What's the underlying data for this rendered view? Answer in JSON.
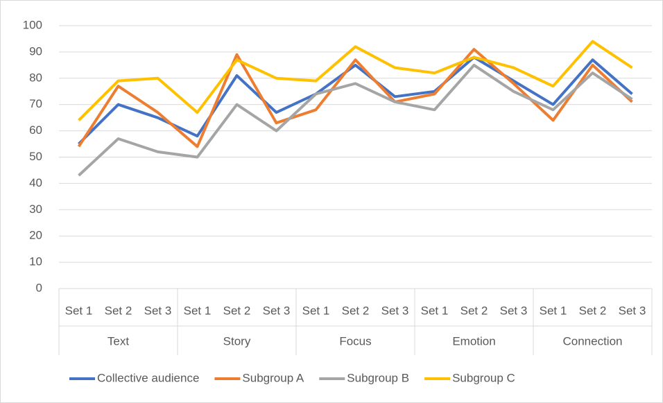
{
  "chart_data": {
    "type": "line",
    "categories": [
      "Set 1",
      "Set 2",
      "Set 3",
      "Set 1",
      "Set 2",
      "Set 3",
      "Set 1",
      "Set 2",
      "Set 3",
      "Set 1",
      "Set 2",
      "Set 3",
      "Set 1",
      "Set 2",
      "Set 3"
    ],
    "groups": [
      "Text",
      "Story",
      "Focus",
      "Emotion",
      "Connection"
    ],
    "series": [
      {
        "name": "Collective audience",
        "color": "#4472c4",
        "values": [
          55,
          70,
          65,
          58,
          81,
          67,
          74,
          85,
          73,
          75,
          88,
          79,
          70,
          87,
          74
        ]
      },
      {
        "name": "Subgroup A",
        "color": "#ed7d31",
        "values": [
          54,
          77,
          67,
          54,
          89,
          63,
          68,
          87,
          71,
          74,
          91,
          78,
          64,
          85,
          71
        ]
      },
      {
        "name": "Subgroup B",
        "color": "#a5a5a5",
        "values": [
          43,
          57,
          52,
          50,
          70,
          60,
          74,
          78,
          71,
          68,
          85,
          75,
          68,
          82,
          72
        ]
      },
      {
        "name": "Subgroup C",
        "color": "#ffc000",
        "values": [
          64,
          79,
          80,
          67,
          87,
          80,
          79,
          92,
          84,
          82,
          88,
          84,
          77,
          94,
          84
        ]
      }
    ],
    "ylim": [
      0,
      100
    ],
    "yticks": [
      0,
      10,
      20,
      30,
      40,
      50,
      60,
      70,
      80,
      90,
      100
    ],
    "grid": true,
    "legend": "bottom"
  }
}
